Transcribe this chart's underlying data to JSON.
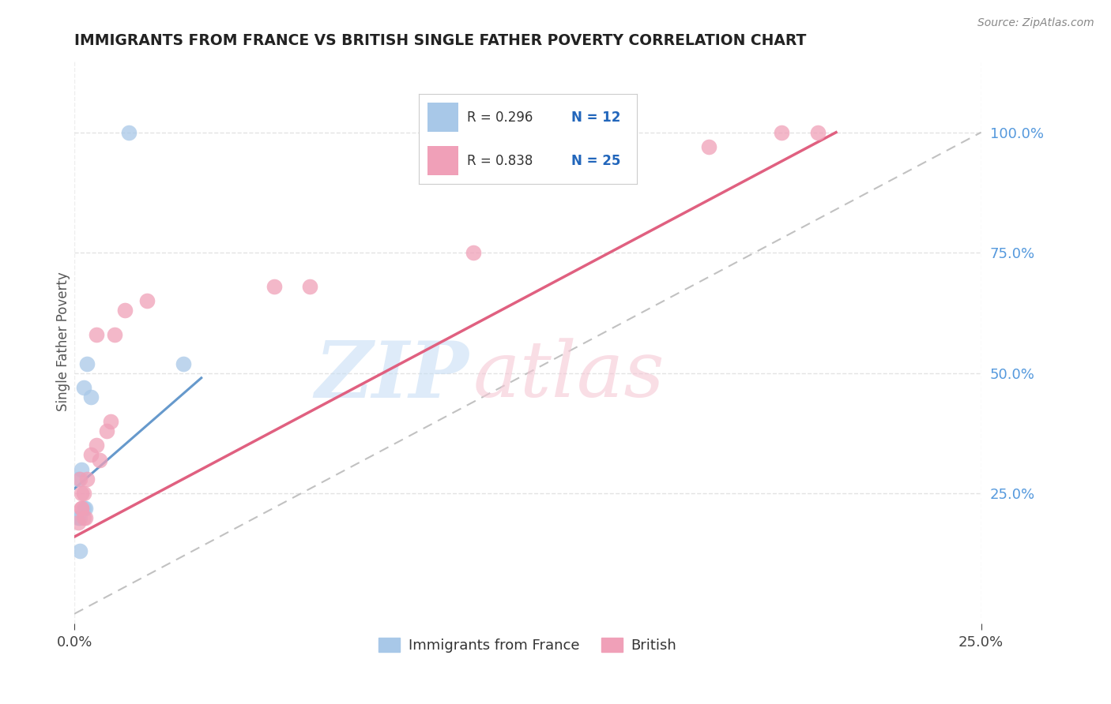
{
  "title": "IMMIGRANTS FROM FRANCE VS BRITISH SINGLE FATHER POVERTY CORRELATION CHART",
  "source": "Source: ZipAtlas.com",
  "ylabel": "Single Father Poverty",
  "xlim": [
    0.0,
    25.0
  ],
  "ylim": [
    -2.0,
    115.0
  ],
  "xtick_labels": [
    "0.0%",
    "25.0%"
  ],
  "xtick_vals": [
    0.0,
    25.0
  ],
  "ytick_labels": [
    "25.0%",
    "50.0%",
    "75.0%",
    "100.0%"
  ],
  "ytick_vals": [
    25.0,
    50.0,
    75.0,
    100.0
  ],
  "legend_r1": "R = 0.296",
  "legend_n1": "N = 12",
  "legend_r2": "R = 0.838",
  "legend_n2": "N = 25",
  "blue_color": "#A8C8E8",
  "pink_color": "#F0A0B8",
  "blue_line_color": "#6699CC",
  "pink_line_color": "#E06080",
  "blue_scatter_x": [
    1.5,
    0.1,
    0.25,
    0.3,
    0.2,
    0.1,
    0.15,
    0.35,
    0.25,
    3.0,
    0.15,
    0.45
  ],
  "blue_scatter_y": [
    100.0,
    20.0,
    47.0,
    22.0,
    30.0,
    28.0,
    20.0,
    52.0,
    22.0,
    52.0,
    13.0,
    45.0
  ],
  "pink_scatter_x": [
    0.2,
    0.25,
    0.1,
    0.3,
    0.2,
    0.25,
    0.2,
    0.15,
    0.35,
    0.45,
    0.7,
    0.6,
    1.0,
    0.9,
    0.6,
    1.4,
    1.1,
    2.0,
    5.5,
    6.5,
    11.0,
    15.0,
    17.5,
    20.5,
    19.5
  ],
  "pink_scatter_y": [
    22.0,
    20.0,
    19.0,
    20.0,
    22.0,
    25.0,
    25.0,
    28.0,
    28.0,
    33.0,
    32.0,
    35.0,
    40.0,
    38.0,
    58.0,
    63.0,
    58.0,
    65.0,
    68.0,
    68.0,
    75.0,
    100.0,
    97.0,
    100.0,
    100.0
  ],
  "blue_line_x": [
    0.0,
    3.5
  ],
  "blue_line_y": [
    26.0,
    49.0
  ],
  "pink_line_x": [
    0.0,
    21.0
  ],
  "pink_line_y": [
    16.0,
    100.0
  ],
  "ref_line_x": [
    0.0,
    25.0
  ],
  "ref_line_y": [
    0.0,
    100.0
  ],
  "background_color": "#FFFFFF",
  "grid_color": "#DDDDDD"
}
